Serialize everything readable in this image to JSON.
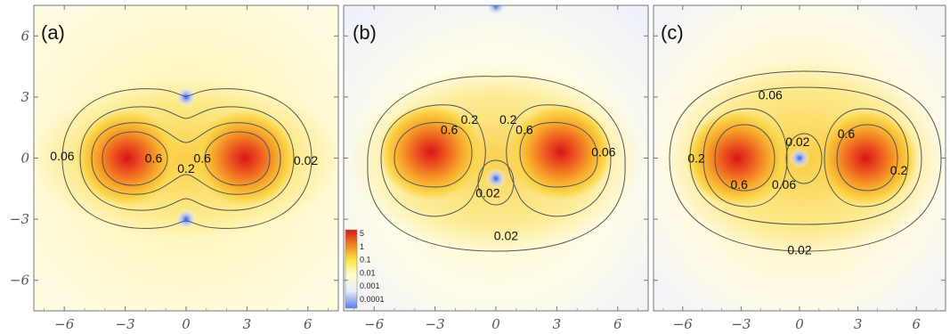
{
  "chart_data": [
    {
      "type": "heatmap",
      "panel_label": "(a)",
      "xlim": [
        -7.5,
        7.5
      ],
      "ylim": [
        -7.5,
        7.5
      ],
      "x_ticks": [
        "−6",
        "−3",
        "0",
        "3",
        "6"
      ],
      "x_tick_values": [
        -6,
        -3,
        0,
        3,
        6
      ],
      "y_ticks": [
        "6",
        "3",
        "0",
        "−3",
        "−6"
      ],
      "y_tick_values": [
        6,
        3,
        0,
        -3,
        -6
      ],
      "peaks": [
        {
          "x": -2.9,
          "y": 0
        },
        {
          "x": 2.9,
          "y": 0
        }
      ],
      "minima": [
        {
          "x": 0,
          "y": 3
        },
        {
          "x": 0,
          "y": -3
        }
      ],
      "contour_labels": [
        {
          "text": "0.06",
          "x": -6.1,
          "y": 0.1
        },
        {
          "text": "0.6",
          "x": -1.6,
          "y": 0.0
        },
        {
          "text": "0.2",
          "x": 0.0,
          "y": -0.5
        },
        {
          "text": "0.6",
          "x": 0.8,
          "y": 0.0
        },
        {
          "text": "0.02",
          "x": 5.9,
          "y": -0.1
        }
      ]
    },
    {
      "type": "heatmap",
      "panel_label": "(b)",
      "xlim": [
        -7.5,
        7.5
      ],
      "ylim": [
        -7.5,
        7.5
      ],
      "x_ticks": [
        "−6",
        "−3",
        "0",
        "3",
        "6"
      ],
      "x_tick_values": [
        -6,
        -3,
        0,
        3,
        6
      ],
      "peaks": [
        {
          "x": -3.2,
          "y": 0.3
        },
        {
          "x": 3.2,
          "y": 0.3
        }
      ],
      "minima": [
        {
          "x": 0,
          "y": -1
        },
        {
          "x": 0,
          "y": 7.5
        }
      ],
      "contour_labels": [
        {
          "text": "0.6",
          "x": -2.3,
          "y": 1.4
        },
        {
          "text": "0.2",
          "x": -1.3,
          "y": 1.9
        },
        {
          "text": "0.2",
          "x": 0.6,
          "y": 1.9
        },
        {
          "text": "0.6",
          "x": 1.4,
          "y": 1.4
        },
        {
          "text": "0.06",
          "x": 5.3,
          "y": 0.3
        },
        {
          "text": "0.02",
          "x": -0.4,
          "y": -1.7
        },
        {
          "text": "0.02",
          "x": 0.5,
          "y": -3.8
        }
      ],
      "colorbar": {
        "ticks": [
          "5",
          "1",
          "0.1",
          "0.01",
          "0.001",
          "0.0001"
        ],
        "colors": [
          "#d11a1a",
          "#f07a22",
          "#fbe53a",
          "#fffbd0",
          "#e9edfb",
          "#5a7cf0"
        ]
      }
    },
    {
      "type": "heatmap",
      "panel_label": "(c)",
      "xlim": [
        -7.5,
        7.5
      ],
      "ylim": [
        -7.5,
        7.5
      ],
      "x_ticks": [
        "−6",
        "−3",
        "0",
        "3",
        "6"
      ],
      "x_tick_values": [
        -6,
        -3,
        0,
        3,
        6
      ],
      "peaks": [
        {
          "x": -3.2,
          "y": 0
        },
        {
          "x": 3.4,
          "y": 0
        }
      ],
      "minima": [
        {
          "x": 0,
          "y": 0
        }
      ],
      "contour_labels": [
        {
          "text": "0.06",
          "x": -1.5,
          "y": 3.1
        },
        {
          "text": "0.02",
          "x": -0.1,
          "y": 0.8
        },
        {
          "text": "0.6",
          "x": 2.4,
          "y": 1.2
        },
        {
          "text": "0.2",
          "x": -5.3,
          "y": 0.0
        },
        {
          "text": "0.6",
          "x": -3.1,
          "y": -1.3
        },
        {
          "text": "0.06",
          "x": -0.8,
          "y": -1.3
        },
        {
          "text": "0.2",
          "x": 5.1,
          "y": -0.6
        },
        {
          "text": "0.02",
          "x": 0.0,
          "y": -4.5
        }
      ]
    }
  ]
}
